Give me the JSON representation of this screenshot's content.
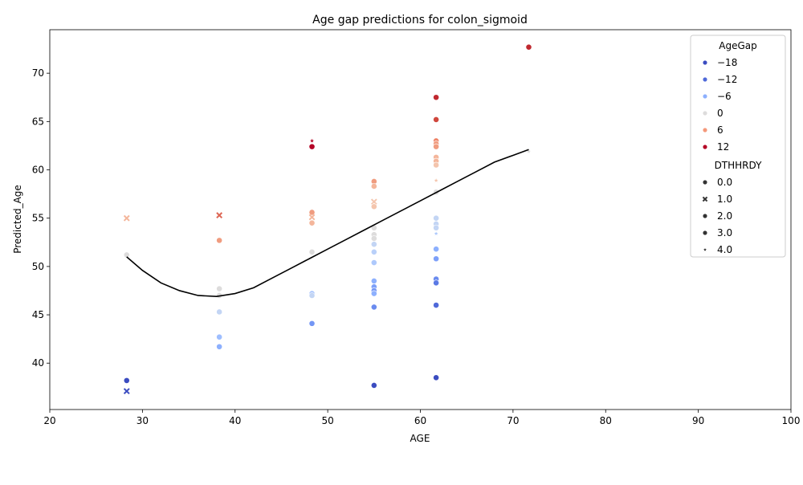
{
  "chart_data": {
    "type": "scatter",
    "title": "Age gap predictions for colon_sigmoid",
    "xlabel": "AGE",
    "ylabel": "Predicted_Age",
    "xlim": [
      20,
      100
    ],
    "ylim": [
      35.2,
      74.5
    ],
    "xticks": [
      20,
      30,
      40,
      50,
      60,
      70,
      80,
      90,
      100
    ],
    "yticks": [
      40,
      45,
      50,
      55,
      60,
      65,
      70
    ],
    "grid": false,
    "legend_position": "top-right",
    "hue": {
      "title": "AgeGap",
      "entries": [
        {
          "label": "−18",
          "color": "#3b4cc0"
        },
        {
          "label": "−12",
          "color": "#4f69d9"
        },
        {
          "label": "−6",
          "color": "#8db0fe"
        },
        {
          "label": "0",
          "color": "#dddcdc"
        },
        {
          "label": "6",
          "color": "#f4987a"
        },
        {
          "label": "12",
          "color": "#b40426"
        }
      ]
    },
    "style": {
      "title": "DTHHRDY",
      "entries": [
        {
          "label": "0.0",
          "marker": "circle"
        },
        {
          "label": "1.0",
          "marker": "x"
        },
        {
          "label": "2.0",
          "marker": "circle"
        },
        {
          "label": "3.0",
          "marker": "circle"
        },
        {
          "label": "4.0",
          "marker": "star"
        }
      ]
    },
    "points": [
      {
        "x": 28.3,
        "y": 51.2,
        "m": "circle",
        "c": "#dddcdc"
      },
      {
        "x": 28.3,
        "y": 55.0,
        "m": "x",
        "c": "#f4b69b"
      },
      {
        "x": 28.3,
        "y": 38.2,
        "m": "circle",
        "c": "#3b4cc0"
      },
      {
        "x": 28.3,
        "y": 37.1,
        "m": "x",
        "c": "#3b4cc0"
      },
      {
        "x": 38.3,
        "y": 55.3,
        "m": "x",
        "c": "#dd6654"
      },
      {
        "x": 38.3,
        "y": 52.7,
        "m": "circle",
        "c": "#f09c7f"
      },
      {
        "x": 38.3,
        "y": 47.7,
        "m": "circle",
        "c": "#dddcdc"
      },
      {
        "x": 38.3,
        "y": 47.0,
        "m": "circle",
        "c": "#dddcdc"
      },
      {
        "x": 38.3,
        "y": 45.3,
        "m": "circle",
        "c": "#c3d5f4"
      },
      {
        "x": 38.3,
        "y": 42.7,
        "m": "circle",
        "c": "#9ebeff"
      },
      {
        "x": 38.3,
        "y": 41.7,
        "m": "circle",
        "c": "#8db0fe"
      },
      {
        "x": 48.3,
        "y": 63.0,
        "m": "star",
        "c": "#b40426"
      },
      {
        "x": 48.3,
        "y": 62.4,
        "m": "circle",
        "c": "#b40426"
      },
      {
        "x": 48.3,
        "y": 55.6,
        "m": "circle",
        "c": "#f09c7f"
      },
      {
        "x": 48.3,
        "y": 55.1,
        "m": "x",
        "c": "#f4b69b"
      },
      {
        "x": 48.3,
        "y": 54.5,
        "m": "circle",
        "c": "#f4b69b"
      },
      {
        "x": 48.3,
        "y": 51.5,
        "m": "circle",
        "c": "#dddcdc"
      },
      {
        "x": 48.3,
        "y": 47.2,
        "m": "circle",
        "c": "#a5c3fe"
      },
      {
        "x": 48.3,
        "y": 47.0,
        "m": "circle",
        "c": "#c3d5f4"
      },
      {
        "x": 48.3,
        "y": 44.1,
        "m": "circle",
        "c": "#7396f5"
      },
      {
        "x": 55.0,
        "y": 58.8,
        "m": "circle",
        "c": "#f09c7f"
      },
      {
        "x": 55.0,
        "y": 58.3,
        "m": "circle",
        "c": "#f4b69b"
      },
      {
        "x": 55.0,
        "y": 56.7,
        "m": "x",
        "c": "#f4c5ad"
      },
      {
        "x": 55.0,
        "y": 56.2,
        "m": "circle",
        "c": "#f4c5ad"
      },
      {
        "x": 55.0,
        "y": 54.0,
        "m": "circle",
        "c": "#dddcdc"
      },
      {
        "x": 55.0,
        "y": 53.3,
        "m": "circle",
        "c": "#dddcdc"
      },
      {
        "x": 55.0,
        "y": 52.9,
        "m": "circle",
        "c": "#dddcdc"
      },
      {
        "x": 55.0,
        "y": 52.3,
        "m": "circle",
        "c": "#c3d5f4"
      },
      {
        "x": 55.0,
        "y": 51.5,
        "m": "circle",
        "c": "#b9d0f9"
      },
      {
        "x": 55.0,
        "y": 50.4,
        "m": "circle",
        "c": "#aec9fc"
      },
      {
        "x": 55.0,
        "y": 48.5,
        "m": "circle",
        "c": "#8db0fe"
      },
      {
        "x": 55.0,
        "y": 47.9,
        "m": "circle",
        "c": "#7da0f9"
      },
      {
        "x": 55.0,
        "y": 47.5,
        "m": "circle",
        "c": "#7396f5"
      },
      {
        "x": 55.0,
        "y": 47.2,
        "m": "circle",
        "c": "#8db0fe"
      },
      {
        "x": 55.0,
        "y": 45.8,
        "m": "circle",
        "c": "#6a8bef"
      },
      {
        "x": 55.0,
        "y": 37.7,
        "m": "circle",
        "c": "#3b4cc0"
      },
      {
        "x": 61.7,
        "y": 67.5,
        "m": "circle",
        "c": "#c0282f"
      },
      {
        "x": 61.7,
        "y": 65.2,
        "m": "circle",
        "c": "#d0473d"
      },
      {
        "x": 61.7,
        "y": 63.0,
        "m": "circle",
        "c": "#ee8468"
      },
      {
        "x": 61.7,
        "y": 62.7,
        "m": "circle",
        "c": "#f09c7f"
      },
      {
        "x": 61.7,
        "y": 62.4,
        "m": "circle",
        "c": "#f09c7f"
      },
      {
        "x": 61.7,
        "y": 61.3,
        "m": "circle",
        "c": "#f4b69b"
      },
      {
        "x": 61.7,
        "y": 60.9,
        "m": "circle",
        "c": "#f4b69b"
      },
      {
        "x": 61.7,
        "y": 60.5,
        "m": "circle",
        "c": "#f4c5ad"
      },
      {
        "x": 61.7,
        "y": 58.9,
        "m": "star",
        "c": "#f4c5ad"
      },
      {
        "x": 61.7,
        "y": 57.7,
        "m": "circle",
        "c": "#dddcdc"
      },
      {
        "x": 61.7,
        "y": 55.0,
        "m": "circle",
        "c": "#c3d5f4"
      },
      {
        "x": 61.7,
        "y": 54.4,
        "m": "circle",
        "c": "#c3d5f4"
      },
      {
        "x": 61.7,
        "y": 54.0,
        "m": "circle",
        "c": "#c3d5f4"
      },
      {
        "x": 61.7,
        "y": 53.4,
        "m": "star",
        "c": "#aec9fc"
      },
      {
        "x": 61.7,
        "y": 51.8,
        "m": "circle",
        "c": "#8db0fe"
      },
      {
        "x": 61.7,
        "y": 50.8,
        "m": "circle",
        "c": "#7da0f9"
      },
      {
        "x": 61.7,
        "y": 48.7,
        "m": "circle",
        "c": "#6a8bef"
      },
      {
        "x": 61.7,
        "y": 48.3,
        "m": "circle",
        "c": "#5b7ae5"
      },
      {
        "x": 61.7,
        "y": 46.0,
        "m": "circle",
        "c": "#4f69d9"
      },
      {
        "x": 61.7,
        "y": 38.5,
        "m": "circle",
        "c": "#3b4cc0"
      },
      {
        "x": 71.7,
        "y": 72.7,
        "m": "circle",
        "c": "#c0282f"
      },
      {
        "x": 71.7,
        "y": 61.9,
        "m": "star",
        "c": "#dddcdc"
      }
    ],
    "trend_line": {
      "x": [
        28.3,
        30,
        32,
        34,
        36,
        38,
        40,
        42,
        44,
        46,
        48,
        50,
        52,
        54,
        56,
        58,
        60,
        62,
        64,
        66,
        68,
        70,
        71.7
      ],
      "y": [
        51.0,
        49.6,
        48.3,
        47.5,
        47.0,
        46.9,
        47.2,
        47.8,
        48.8,
        49.8,
        50.8,
        51.8,
        52.8,
        53.8,
        54.8,
        55.8,
        56.8,
        57.8,
        58.8,
        59.8,
        60.8,
        61.5,
        62.1
      ],
      "color": "#000000"
    }
  }
}
